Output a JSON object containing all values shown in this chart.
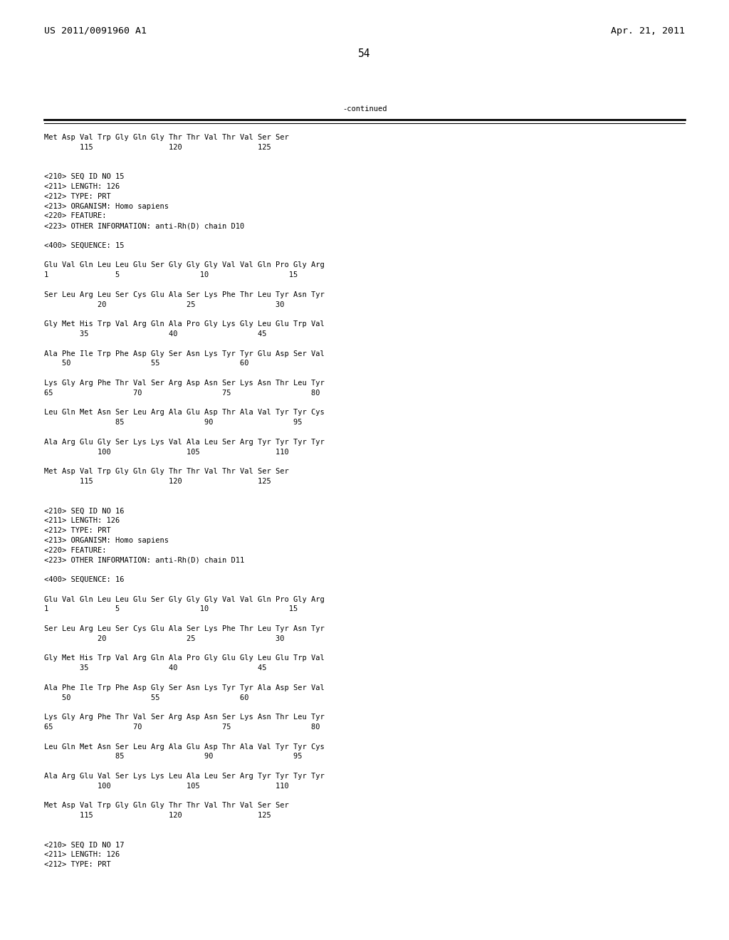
{
  "header_left": "US 2011/0091960 A1",
  "header_right": "Apr. 21, 2011",
  "page_number": "54",
  "continued_label": "-continued",
  "background_color": "#ffffff",
  "text_color": "#000000",
  "font_size": 7.5,
  "header_font_size": 9.5,
  "page_num_font_size": 10.5,
  "lines": [
    "Met Asp Val Trp Gly Gln Gly Thr Thr Val Thr Val Ser Ser",
    "        115                 120                 125",
    "",
    "",
    "<210> SEQ ID NO 15",
    "<211> LENGTH: 126",
    "<212> TYPE: PRT",
    "<213> ORGANISM: Homo sapiens",
    "<220> FEATURE:",
    "<223> OTHER INFORMATION: anti-Rh(D) chain D10",
    "",
    "<400> SEQUENCE: 15",
    "",
    "Glu Val Gln Leu Leu Glu Ser Gly Gly Gly Val Val Gln Pro Gly Arg",
    "1               5                  10                  15",
    "",
    "Ser Leu Arg Leu Ser Cys Glu Ala Ser Lys Phe Thr Leu Tyr Asn Tyr",
    "            20                  25                  30",
    "",
    "Gly Met His Trp Val Arg Gln Ala Pro Gly Lys Gly Leu Glu Trp Val",
    "        35                  40                  45",
    "",
    "Ala Phe Ile Trp Phe Asp Gly Ser Asn Lys Tyr Tyr Glu Asp Ser Val",
    "    50                  55                  60",
    "",
    "Lys Gly Arg Phe Thr Val Ser Arg Asp Asn Ser Lys Asn Thr Leu Tyr",
    "65                  70                  75                  80",
    "",
    "Leu Gln Met Asn Ser Leu Arg Ala Glu Asp Thr Ala Val Tyr Tyr Cys",
    "                85                  90                  95",
    "",
    "Ala Arg Glu Gly Ser Lys Lys Val Ala Leu Ser Arg Tyr Tyr Tyr Tyr",
    "            100                 105                 110",
    "",
    "Met Asp Val Trp Gly Gln Gly Thr Thr Val Thr Val Ser Ser",
    "        115                 120                 125",
    "",
    "",
    "<210> SEQ ID NO 16",
    "<211> LENGTH: 126",
    "<212> TYPE: PRT",
    "<213> ORGANISM: Homo sapiens",
    "<220> FEATURE:",
    "<223> OTHER INFORMATION: anti-Rh(D) chain D11",
    "",
    "<400> SEQUENCE: 16",
    "",
    "Glu Val Gln Leu Leu Glu Ser Gly Gly Gly Val Val Gln Pro Gly Arg",
    "1               5                  10                  15",
    "",
    "Ser Leu Arg Leu Ser Cys Glu Ala Ser Lys Phe Thr Leu Tyr Asn Tyr",
    "            20                  25                  30",
    "",
    "Gly Met His Trp Val Arg Gln Ala Pro Gly Glu Gly Leu Glu Trp Val",
    "        35                  40                  45",
    "",
    "Ala Phe Ile Trp Phe Asp Gly Ser Asn Lys Tyr Tyr Ala Asp Ser Val",
    "    50                  55                  60",
    "",
    "Lys Gly Arg Phe Thr Val Ser Arg Asp Asn Ser Lys Asn Thr Leu Tyr",
    "65                  70                  75                  80",
    "",
    "Leu Gln Met Asn Ser Leu Arg Ala Glu Asp Thr Ala Val Tyr Tyr Cys",
    "                85                  90                  95",
    "",
    "Ala Arg Glu Val Ser Lys Lys Leu Ala Leu Ser Arg Tyr Tyr Tyr Tyr",
    "            100                 105                 110",
    "",
    "Met Asp Val Trp Gly Gln Gly Thr Thr Val Thr Val Ser Ser",
    "        115                 120                 125",
    "",
    "",
    "<210> SEQ ID NO 17",
    "<211> LENGTH: 126",
    "<212> TYPE: PRT"
  ]
}
